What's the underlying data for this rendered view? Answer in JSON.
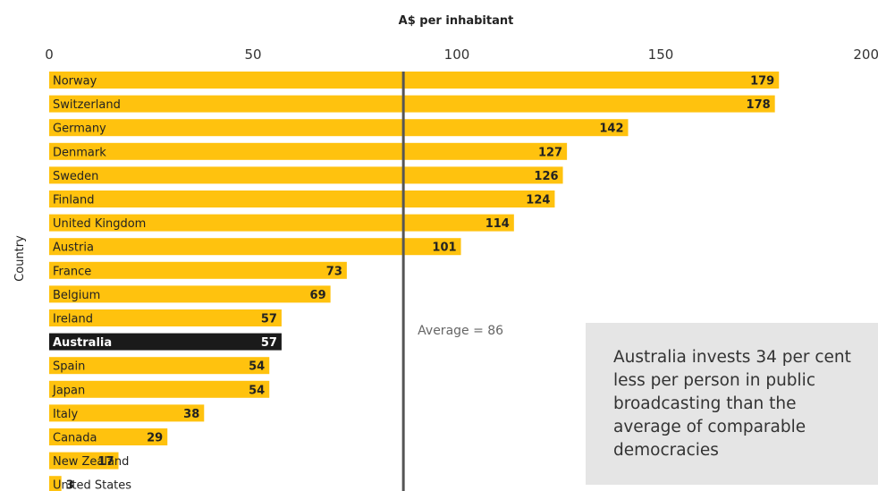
{
  "chart_data": {
    "type": "bar",
    "orientation": "horizontal",
    "xlabel": "A$ per inhabitant",
    "ylabel": "Country",
    "xlim": [
      0,
      200
    ],
    "xticks": [
      0,
      50,
      100,
      150,
      200
    ],
    "categories": [
      "Norway",
      "Switzerland",
      "Germany",
      "Denmark",
      "Sweden",
      "Finland",
      "United Kingdom",
      "Austria",
      "France",
      "Belgium",
      "Ireland",
      "Australia",
      "Spain",
      "Japan",
      "Italy",
      "Canada",
      "New Zealand",
      "United States"
    ],
    "values": [
      179,
      178,
      142,
      127,
      126,
      124,
      114,
      101,
      73,
      69,
      57,
      57,
      54,
      54,
      38,
      29,
      17,
      3
    ],
    "highlight": "Australia",
    "reference_line": {
      "value": 86,
      "label": "Average = 86"
    },
    "colors": {
      "bar": "#ffc20e",
      "highlight_bar": "#1a1a1a",
      "reference_line": "#555555",
      "text": "#222222"
    },
    "grid": false
  },
  "callout": {
    "text": "Australia invests 34 per cent less per person in public broadcasting than the average of comparable democracies",
    "background": "#e5e5e5"
  }
}
